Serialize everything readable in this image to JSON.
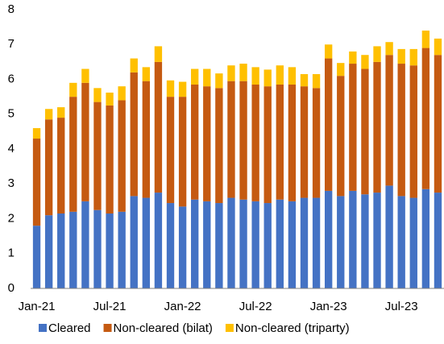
{
  "chart_data": {
    "type": "stacked-bar",
    "categories": [
      "Jan-21",
      null,
      null,
      null,
      null,
      null,
      "Jul-21",
      null,
      null,
      null,
      null,
      null,
      "Jan-22",
      null,
      null,
      null,
      null,
      null,
      "Jul-22",
      null,
      null,
      null,
      null,
      null,
      "Jan-23",
      null,
      null,
      null,
      null,
      null,
      "Jul-23",
      null,
      null,
      null
    ],
    "series": [
      {
        "name": "Cleared",
        "color": "#4472c4",
        "values": [
          1.8,
          2.1,
          2.15,
          2.2,
          2.5,
          2.25,
          2.15,
          2.2,
          2.65,
          2.6,
          2.75,
          2.45,
          2.35,
          2.55,
          2.5,
          2.45,
          2.6,
          2.55,
          2.5,
          2.45,
          2.55,
          2.5,
          2.6,
          2.6,
          2.8,
          2.65,
          2.8,
          2.7,
          2.75,
          2.95,
          2.65,
          2.6,
          2.85,
          2.75
        ]
      },
      {
        "name": "Non-cleared (bilat)",
        "color": "#c55a11",
        "values": [
          2.5,
          2.75,
          2.75,
          3.3,
          3.4,
          3.1,
          3.1,
          3.2,
          3.55,
          3.35,
          3.75,
          3.05,
          3.15,
          3.3,
          3.3,
          3.3,
          3.35,
          3.4,
          3.35,
          3.35,
          3.3,
          3.35,
          3.2,
          3.15,
          3.8,
          3.45,
          3.65,
          3.6,
          3.75,
          3.75,
          3.8,
          3.8,
          4.05,
          3.95
        ]
      },
      {
        "name": "Non-cleared (triparty)",
        "color": "#ffc000",
        "values": [
          0.3,
          0.3,
          0.3,
          0.4,
          0.4,
          0.4,
          0.37,
          0.4,
          0.4,
          0.4,
          0.45,
          0.47,
          0.43,
          0.45,
          0.5,
          0.42,
          0.45,
          0.5,
          0.5,
          0.48,
          0.55,
          0.5,
          0.35,
          0.4,
          0.4,
          0.37,
          0.35,
          0.4,
          0.45,
          0.37,
          0.42,
          0.47,
          0.5,
          0.47
        ]
      }
    ],
    "ylim": [
      0,
      8
    ],
    "yticks": [
      0,
      1,
      2,
      3,
      4,
      5,
      6,
      7,
      8
    ],
    "grid": false,
    "legend": "bottom"
  }
}
